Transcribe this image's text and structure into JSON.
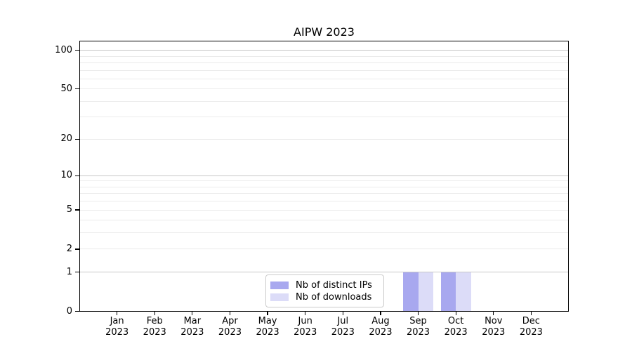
{
  "chart_data": {
    "type": "bar",
    "title": "AIPW 2023",
    "categories": [
      {
        "month": "Jan",
        "year": "2023"
      },
      {
        "month": "Feb",
        "year": "2023"
      },
      {
        "month": "Mar",
        "year": "2023"
      },
      {
        "month": "Apr",
        "year": "2023"
      },
      {
        "month": "May",
        "year": "2023"
      },
      {
        "month": "Jun",
        "year": "2023"
      },
      {
        "month": "Jul",
        "year": "2023"
      },
      {
        "month": "Aug",
        "year": "2023"
      },
      {
        "month": "Sep",
        "year": "2023"
      },
      {
        "month": "Oct",
        "year": "2023"
      },
      {
        "month": "Nov",
        "year": "2023"
      },
      {
        "month": "Dec",
        "year": "2023"
      }
    ],
    "series": [
      {
        "name": "Nb of distinct IPs",
        "color": "#a8a8ef",
        "values": [
          0,
          0,
          0,
          0,
          0,
          0,
          0,
          0,
          1,
          1,
          0,
          0
        ]
      },
      {
        "name": "Nb of downloads",
        "color": "#dcdcf8",
        "values": [
          0,
          0,
          0,
          0,
          0,
          0,
          0,
          0,
          1,
          1,
          0,
          0
        ]
      }
    ],
    "xlabel": "",
    "ylabel": "",
    "yscale": "log1p",
    "ylim": [
      0,
      118.6
    ],
    "ytick_labels": [
      0,
      1,
      2,
      5,
      10,
      20,
      50,
      100
    ],
    "major_gridlines": [
      1,
      10,
      100
    ],
    "minor_gridlines": [
      2,
      3,
      4,
      5,
      6,
      7,
      8,
      9,
      20,
      30,
      40,
      50,
      60,
      70,
      80,
      90
    ],
    "grid": {
      "major_color": "#c7c7c7",
      "minor_color": "#ebebeb"
    },
    "legend": {
      "position": "lower center, inside plot"
    },
    "bar_width_fraction": 0.4
  }
}
